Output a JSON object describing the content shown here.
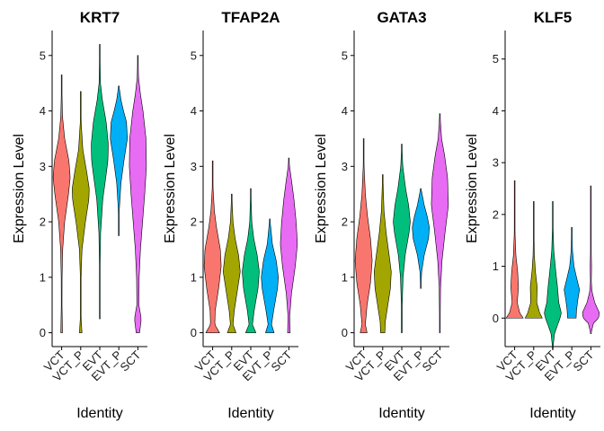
{
  "chart_data": {
    "type": "violin",
    "ylabel": "Expression Level",
    "xlabel": "Identity",
    "categories": [
      "VCT",
      "VCT_P",
      "EVT",
      "EVT_P",
      "SCT"
    ],
    "colors": {
      "VCT": "#F8766D",
      "VCT_P": "#A3A500",
      "EVT": "#00BF7D",
      "EVT_P": "#00B0F6",
      "SCT": "#E76BF3"
    },
    "panels": [
      {
        "title": "KRT7",
        "ylim": [
          -0.25,
          5.45
        ],
        "yticks": [
          "0",
          "1",
          "2",
          "3",
          "4",
          "5"
        ],
        "violins": [
          {
            "category": "VCT",
            "min": 0,
            "max": 4.65,
            "profile": [
              [
                0,
                0.1
              ],
              [
                0.5,
                0.04
              ],
              [
                1.0,
                0.05
              ],
              [
                1.5,
                0.12
              ],
              [
                2.0,
                0.35
              ],
              [
                2.5,
                0.8
              ],
              [
                2.8,
                1.0
              ],
              [
                3.1,
                0.85
              ],
              [
                3.5,
                0.35
              ],
              [
                3.9,
                0.1
              ],
              [
                4.3,
                0.04
              ],
              [
                4.65,
                0.01
              ]
            ]
          },
          {
            "category": "VCT_P",
            "min": 0,
            "max": 4.35,
            "profile": [
              [
                0,
                0.15
              ],
              [
                0.3,
                0.03
              ],
              [
                1.0,
                0.04
              ],
              [
                1.5,
                0.15
              ],
              [
                2.0,
                0.55
              ],
              [
                2.4,
                0.95
              ],
              [
                2.6,
                1.0
              ],
              [
                2.9,
                0.7
              ],
              [
                3.3,
                0.25
              ],
              [
                3.8,
                0.05
              ],
              [
                4.35,
                0.01
              ]
            ]
          },
          {
            "category": "EVT",
            "min": 0.25,
            "max": 5.2,
            "profile": [
              [
                0.25,
                0.01
              ],
              [
                1.0,
                0.02
              ],
              [
                1.8,
                0.1
              ],
              [
                2.4,
                0.35
              ],
              [
                2.8,
                0.7
              ],
              [
                3.1,
                0.95
              ],
              [
                3.4,
                1.0
              ],
              [
                3.8,
                0.75
              ],
              [
                4.2,
                0.3
              ],
              [
                4.5,
                0.08
              ],
              [
                5.2,
                0.01
              ]
            ]
          },
          {
            "category": "EVT_P",
            "min": 1.75,
            "max": 4.45,
            "profile": [
              [
                1.75,
                0.01
              ],
              [
                2.2,
                0.05
              ],
              [
                2.7,
                0.25
              ],
              [
                3.1,
                0.6
              ],
              [
                3.5,
                1.0
              ],
              [
                3.8,
                0.9
              ],
              [
                4.0,
                0.55
              ],
              [
                4.2,
                0.25
              ],
              [
                4.45,
                0.02
              ]
            ]
          },
          {
            "category": "SCT",
            "min": 0,
            "max": 5.0,
            "profile": [
              [
                0,
                0.2
              ],
              [
                0.25,
                0.4
              ],
              [
                0.5,
                0.12
              ],
              [
                1.0,
                0.15
              ],
              [
                1.5,
                0.3
              ],
              [
                2.0,
                0.55
              ],
              [
                2.5,
                0.8
              ],
              [
                3.0,
                1.0
              ],
              [
                3.5,
                0.95
              ],
              [
                4.0,
                0.6
              ],
              [
                4.3,
                0.3
              ],
              [
                4.6,
                0.08
              ],
              [
                5.0,
                0.01
              ]
            ]
          }
        ]
      },
      {
        "title": "TFAP2A",
        "ylim": [
          -0.25,
          5.45
        ],
        "yticks": [
          "0",
          "1",
          "2",
          "3",
          "4",
          "5"
        ],
        "violins": [
          {
            "category": "VCT",
            "min": 0,
            "max": 3.1,
            "profile": [
              [
                0,
                0.8
              ],
              [
                0.15,
                0.25
              ],
              [
                0.4,
                0.3
              ],
              [
                0.8,
                0.7
              ],
              [
                1.2,
                1.0
              ],
              [
                1.5,
                0.9
              ],
              [
                1.9,
                0.45
              ],
              [
                2.2,
                0.2
              ],
              [
                2.6,
                0.05
              ],
              [
                3.1,
                0.01
              ]
            ]
          },
          {
            "category": "VCT_P",
            "min": 0,
            "max": 2.5,
            "profile": [
              [
                0,
                0.5
              ],
              [
                0.15,
                0.15
              ],
              [
                0.4,
                0.3
              ],
              [
                0.8,
                0.7
              ],
              [
                1.1,
                1.0
              ],
              [
                1.4,
                0.8
              ],
              [
                1.7,
                0.4
              ],
              [
                2.0,
                0.15
              ],
              [
                2.5,
                0.01
              ]
            ]
          },
          {
            "category": "EVT",
            "min": 0,
            "max": 2.6,
            "profile": [
              [
                0,
                0.6
              ],
              [
                0.15,
                0.2
              ],
              [
                0.4,
                0.4
              ],
              [
                0.8,
                0.85
              ],
              [
                1.1,
                1.0
              ],
              [
                1.4,
                0.75
              ],
              [
                1.7,
                0.35
              ],
              [
                2.0,
                0.12
              ],
              [
                2.6,
                0.01
              ]
            ]
          },
          {
            "category": "EVT_P",
            "min": 0,
            "max": 2.05,
            "profile": [
              [
                0,
                0.5
              ],
              [
                0.15,
                0.2
              ],
              [
                0.4,
                0.45
              ],
              [
                0.8,
                0.9
              ],
              [
                1.0,
                1.0
              ],
              [
                1.3,
                0.75
              ],
              [
                1.6,
                0.3
              ],
              [
                2.05,
                0.01
              ]
            ]
          },
          {
            "category": "SCT",
            "min": 0,
            "max": 3.15,
            "profile": [
              [
                0,
                0.15
              ],
              [
                0.3,
                0.1
              ],
              [
                0.7,
                0.3
              ],
              [
                1.2,
                0.75
              ],
              [
                1.6,
                1.0
              ],
              [
                2.0,
                0.85
              ],
              [
                2.4,
                0.6
              ],
              [
                2.7,
                0.35
              ],
              [
                3.0,
                0.08
              ],
              [
                3.15,
                0.01
              ]
            ]
          }
        ]
      },
      {
        "title": "GATA3",
        "ylim": [
          -0.25,
          5.45
        ],
        "yticks": [
          "0",
          "1",
          "2",
          "3",
          "4",
          "5"
        ],
        "violins": [
          {
            "category": "VCT",
            "min": 0,
            "max": 3.5,
            "profile": [
              [
                0,
                0.4
              ],
              [
                0.15,
                0.2
              ],
              [
                0.5,
                0.4
              ],
              [
                0.9,
                0.8
              ],
              [
                1.3,
                1.0
              ],
              [
                1.7,
                0.8
              ],
              [
                2.1,
                0.45
              ],
              [
                2.5,
                0.2
              ],
              [
                3.0,
                0.05
              ],
              [
                3.5,
                0.01
              ]
            ]
          },
          {
            "category": "VCT_P",
            "min": 0,
            "max": 2.85,
            "profile": [
              [
                0,
                0.25
              ],
              [
                0.2,
                0.3
              ],
              [
                0.5,
                0.6
              ],
              [
                0.8,
                0.9
              ],
              [
                1.1,
                1.0
              ],
              [
                1.4,
                0.75
              ],
              [
                1.8,
                0.4
              ],
              [
                2.2,
                0.15
              ],
              [
                2.85,
                0.01
              ]
            ]
          },
          {
            "category": "EVT",
            "min": 0,
            "max": 3.4,
            "profile": [
              [
                0,
                0.05
              ],
              [
                0.5,
                0.05
              ],
              [
                1.0,
                0.15
              ],
              [
                1.4,
                0.4
              ],
              [
                1.8,
                0.85
              ],
              [
                2.0,
                1.0
              ],
              [
                2.3,
                0.8
              ],
              [
                2.6,
                0.45
              ],
              [
                3.0,
                0.12
              ],
              [
                3.4,
                0.01
              ]
            ]
          },
          {
            "category": "EVT_P",
            "min": 0.8,
            "max": 2.6,
            "profile": [
              [
                0.8,
                0.01
              ],
              [
                1.1,
                0.1
              ],
              [
                1.4,
                0.4
              ],
              [
                1.7,
                0.9
              ],
              [
                1.9,
                1.0
              ],
              [
                2.1,
                0.75
              ],
              [
                2.3,
                0.4
              ],
              [
                2.6,
                0.02
              ]
            ]
          },
          {
            "category": "SCT",
            "min": 0,
            "max": 3.95,
            "profile": [
              [
                0,
                0.02
              ],
              [
                0.8,
                0.08
              ],
              [
                1.3,
                0.25
              ],
              [
                1.8,
                0.6
              ],
              [
                2.3,
                1.0
              ],
              [
                2.8,
                0.9
              ],
              [
                3.2,
                0.55
              ],
              [
                3.5,
                0.2
              ],
              [
                3.95,
                0.01
              ]
            ]
          }
        ]
      },
      {
        "title": "KLF5",
        "ylim": [
          -0.55,
          5.55
        ],
        "yticks": [
          "0",
          "1",
          "2",
          "3",
          "4",
          "5"
        ],
        "violins": [
          {
            "category": "VCT",
            "min": 0,
            "max": 2.65,
            "profile": [
              [
                0,
                1.0
              ],
              [
                0.1,
                0.6
              ],
              [
                0.3,
                0.3
              ],
              [
                0.6,
                0.45
              ],
              [
                0.9,
                0.35
              ],
              [
                1.2,
                0.15
              ],
              [
                1.6,
                0.05
              ],
              [
                2.0,
                0.02
              ],
              [
                2.65,
                0.01
              ]
            ]
          },
          {
            "category": "VCT_P",
            "min": 0,
            "max": 2.25,
            "profile": [
              [
                0,
                1.0
              ],
              [
                0.1,
                0.7
              ],
              [
                0.3,
                0.35
              ],
              [
                0.6,
                0.4
              ],
              [
                0.9,
                0.2
              ],
              [
                1.2,
                0.08
              ],
              [
                1.6,
                0.03
              ],
              [
                2.25,
                0.01
              ]
            ]
          },
          {
            "category": "EVT",
            "min": -0.6,
            "max": 2.25,
            "profile": [
              [
                -0.6,
                0.01
              ],
              [
                -0.3,
                0.2
              ],
              [
                0,
                0.85
              ],
              [
                0.1,
                1.0
              ],
              [
                0.3,
                0.7
              ],
              [
                0.6,
                0.55
              ],
              [
                0.9,
                0.35
              ],
              [
                1.3,
                0.12
              ],
              [
                1.8,
                0.03
              ],
              [
                2.25,
                0.01
              ]
            ]
          },
          {
            "category": "EVT_P",
            "min": 0,
            "max": 1.75,
            "profile": [
              [
                0,
                0.5
              ],
              [
                0.15,
                0.55
              ],
              [
                0.35,
                0.7
              ],
              [
                0.55,
                0.9
              ],
              [
                0.75,
                0.6
              ],
              [
                1.0,
                0.25
              ],
              [
                1.3,
                0.08
              ],
              [
                1.75,
                0.01
              ]
            ]
          },
          {
            "category": "SCT",
            "min": -0.3,
            "max": 2.55,
            "profile": [
              [
                -0.3,
                0.01
              ],
              [
                -0.1,
                0.3
              ],
              [
                0,
                0.9
              ],
              [
                0.1,
                1.0
              ],
              [
                0.3,
                0.45
              ],
              [
                0.5,
                0.15
              ],
              [
                0.7,
                0.05
              ],
              [
                1.0,
                0.08
              ],
              [
                1.3,
                0.04
              ],
              [
                1.8,
                0.02
              ],
              [
                2.55,
                0.01
              ]
            ]
          }
        ]
      }
    ]
  }
}
